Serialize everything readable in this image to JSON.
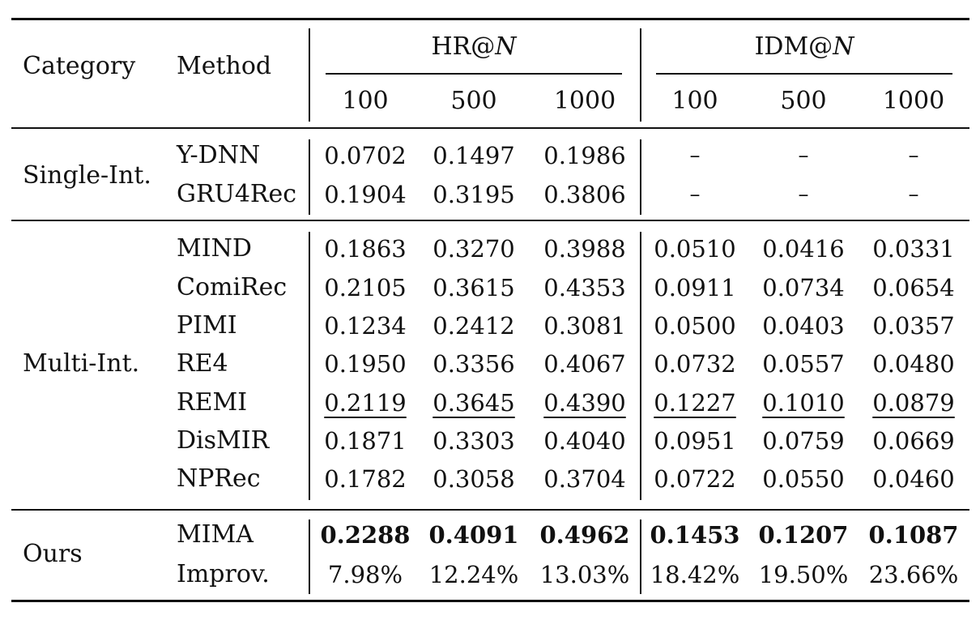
{
  "header": {
    "category": "Category",
    "method": "Method",
    "group_hr": {
      "prefix": "HR@",
      "var": "N"
    },
    "group_idm": {
      "prefix": "IDM@",
      "var": "N"
    },
    "n_values": [
      "100",
      "500",
      "1000",
      "100",
      "500",
      "1000"
    ]
  },
  "groups": [
    {
      "category": "Single-Int.",
      "rows": [
        {
          "method": "Y-DNN",
          "values": [
            "0.0702",
            "0.1497",
            "0.1986",
            "–",
            "–",
            "–"
          ]
        },
        {
          "method": "GRU4Rec",
          "values": [
            "0.1904",
            "0.3195",
            "0.3806",
            "–",
            "–",
            "–"
          ]
        }
      ]
    },
    {
      "category": "Multi-Int.",
      "rows": [
        {
          "method": "MIND",
          "values": [
            "0.1863",
            "0.3270",
            "0.3988",
            "0.0510",
            "0.0416",
            "0.0331"
          ]
        },
        {
          "method": "ComiRec",
          "values": [
            "0.2105",
            "0.3615",
            "0.4353",
            "0.0911",
            "0.0734",
            "0.0654"
          ]
        },
        {
          "method": "PIMI",
          "values": [
            "0.1234",
            "0.2412",
            "0.3081",
            "0.0500",
            "0.0403",
            "0.0357"
          ]
        },
        {
          "method": "RE4",
          "values": [
            "0.1950",
            "0.3356",
            "0.4067",
            "0.0732",
            "0.0557",
            "0.0480"
          ]
        },
        {
          "method": "REMI",
          "values": [
            "0.2119",
            "0.3645",
            "0.4390",
            "0.1227",
            "0.1010",
            "0.0879"
          ],
          "style": "second"
        },
        {
          "method": "DisMIR",
          "values": [
            "0.1871",
            "0.3303",
            "0.4040",
            "0.0951",
            "0.0759",
            "0.0669"
          ]
        },
        {
          "method": "NPRec",
          "values": [
            "0.1782",
            "0.3058",
            "0.3704",
            "0.0722",
            "0.0550",
            "0.0460"
          ]
        }
      ]
    },
    {
      "category": "Ours",
      "rows": [
        {
          "method": "MIMA",
          "values": [
            "0.2288",
            "0.4091",
            "0.4962",
            "0.1453",
            "0.1207",
            "0.1087"
          ],
          "style": "best"
        },
        {
          "method": "Improv.",
          "values": [
            "7.98%",
            "12.24%",
            "13.03%",
            "18.42%",
            "19.50%",
            "23.66%"
          ],
          "style": "pct"
        }
      ]
    }
  ]
}
